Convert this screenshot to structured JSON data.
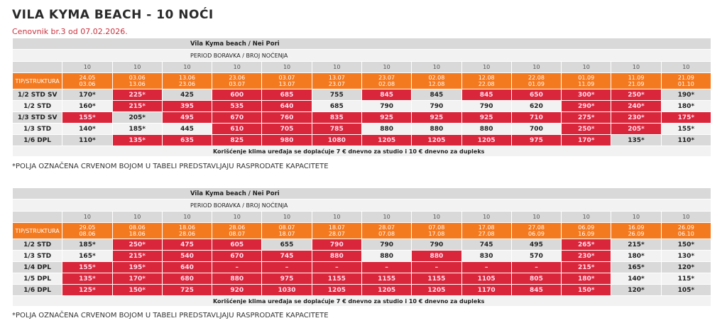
{
  "title": "VILA KYMA BEACH - 10 NOĆI",
  "subtitle": "Cenovnik br.3 od 07.02.2026.",
  "colors": {
    "sold": "#d9263a",
    "header": "#f47a20"
  },
  "tables": [
    {
      "heading": "Vila Kyma beach / Nei Pori",
      "period_label": "PERIOD BORAVKA / BROJ NOĆENJA",
      "type_label": "TIP/STRUKTURA",
      "nights": [
        "10",
        "10",
        "10",
        "10",
        "10",
        "10",
        "10",
        "10",
        "10",
        "10",
        "10",
        "10",
        "10"
      ],
      "periods": [
        [
          "24.05",
          "03.06"
        ],
        [
          "03.06",
          "13.06"
        ],
        [
          "13.06",
          "23.06"
        ],
        [
          "23.06",
          "03.07"
        ],
        [
          "03.07",
          "13.07"
        ],
        [
          "13.07",
          "23.07"
        ],
        [
          "23.07",
          "02.08"
        ],
        [
          "02.08",
          "12.08"
        ],
        [
          "12.08",
          "22.08"
        ],
        [
          "22.08",
          "01.09"
        ],
        [
          "01.09",
          "11.09"
        ],
        [
          "11.09",
          "21.09"
        ],
        [
          "21.09",
          "01.10"
        ]
      ],
      "rows": [
        {
          "type": "1/2 STD SV",
          "values": [
            "170*",
            "225*",
            "425",
            "600",
            "685",
            "755",
            "845",
            "845",
            "845",
            "650",
            "300*",
            "250*",
            "190*"
          ],
          "sold": [
            0,
            1,
            0,
            1,
            1,
            0,
            1,
            0,
            1,
            1,
            1,
            1,
            0
          ]
        },
        {
          "type": "1/2 STD",
          "values": [
            "160*",
            "215*",
            "395",
            "535",
            "640",
            "685",
            "790",
            "790",
            "790",
            "620",
            "290*",
            "240*",
            "180*"
          ],
          "sold": [
            0,
            1,
            1,
            1,
            1,
            0,
            0,
            0,
            0,
            0,
            1,
            1,
            0
          ]
        },
        {
          "type": "1/3 STD SV",
          "values": [
            "155*",
            "205*",
            "495",
            "670",
            "760",
            "835",
            "925",
            "925",
            "925",
            "710",
            "275*",
            "230*",
            "175*"
          ],
          "sold": [
            1,
            0,
            1,
            1,
            1,
            1,
            1,
            1,
            1,
            1,
            1,
            1,
            1
          ]
        },
        {
          "type": "1/3 STD",
          "values": [
            "140*",
            "185*",
            "445",
            "610",
            "705",
            "785",
            "880",
            "880",
            "880",
            "700",
            "250*",
            "205*",
            "155*"
          ],
          "sold": [
            0,
            0,
            0,
            1,
            1,
            1,
            0,
            0,
            0,
            0,
            1,
            1,
            0
          ]
        },
        {
          "type": "1/6 DPL",
          "values": [
            "110*",
            "135*",
            "635",
            "825",
            "980",
            "1080",
            "1205",
            "1205",
            "1205",
            "975",
            "170*",
            "135*",
            "110*"
          ],
          "sold": [
            0,
            1,
            1,
            1,
            1,
            1,
            1,
            1,
            1,
            1,
            1,
            0,
            0
          ]
        }
      ],
      "footer": "Korišćenje klima uređaja se doplaćuje 7 € dnevno za studio i 10 € dnevno za dupleks",
      "note": "*POLJA OZNAČENA CRVENOM BOJOM U TABELI PREDSTAVLJAJU RASPRODATE KAPACITETE"
    },
    {
      "heading": "Vila Kyma beach / Nei Pori",
      "period_label": "PERIOD BORAVKA / BROJ NOĆENJA",
      "type_label": "TIP/STRUKTURA",
      "nights": [
        "10",
        "10",
        "10",
        "10",
        "10",
        "10",
        "10",
        "10",
        "10",
        "10",
        "10",
        "10",
        "10"
      ],
      "periods": [
        [
          "29.05",
          "08.06"
        ],
        [
          "08.06",
          "18.06"
        ],
        [
          "18.06",
          "28.06"
        ],
        [
          "28.06",
          "08.07"
        ],
        [
          "08.07",
          "18.07"
        ],
        [
          "18.07",
          "28.07"
        ],
        [
          "28.07",
          "07.08"
        ],
        [
          "07.08",
          "17.08"
        ],
        [
          "17.08",
          "27.08"
        ],
        [
          "27.08",
          "06.09"
        ],
        [
          "06.09",
          "16.09"
        ],
        [
          "16.09",
          "26.09"
        ],
        [
          "26.09",
          "06.10"
        ]
      ],
      "rows": [
        {
          "type": "1/2 STD",
          "values": [
            "185*",
            "250*",
            "475",
            "605",
            "655",
            "790",
            "790",
            "790",
            "745",
            "495",
            "265*",
            "215*",
            "150*"
          ],
          "sold": [
            0,
            1,
            1,
            1,
            0,
            1,
            0,
            0,
            0,
            0,
            1,
            0,
            0
          ]
        },
        {
          "type": "1/3 STD",
          "values": [
            "165*",
            "215*",
            "540",
            "670",
            "745",
            "880",
            "880",
            "880",
            "830",
            "570",
            "230*",
            "180*",
            "130*"
          ],
          "sold": [
            0,
            1,
            1,
            1,
            1,
            1,
            0,
            1,
            0,
            0,
            1,
            0,
            0
          ]
        },
        {
          "type": "1/4 DPL",
          "values": [
            "155*",
            "195*",
            "640",
            "–",
            "–",
            "–",
            "–",
            "–",
            "–",
            "–",
            "215*",
            "165*",
            "120*"
          ],
          "sold": [
            1,
            1,
            1,
            1,
            1,
            1,
            1,
            1,
            1,
            1,
            1,
            0,
            0
          ]
        },
        {
          "type": "1/5 DPL",
          "values": [
            "135*",
            "170*",
            "680",
            "880",
            "975",
            "1155",
            "1155",
            "1155",
            "1105",
            "805",
            "180*",
            "140*",
            "115*"
          ],
          "sold": [
            1,
            1,
            1,
            1,
            1,
            1,
            1,
            1,
            1,
            1,
            1,
            0,
            0
          ]
        },
        {
          "type": "1/6 DPL",
          "values": [
            "125*",
            "150*",
            "725",
            "920",
            "1030",
            "1205",
            "1205",
            "1205",
            "1170",
            "845",
            "150*",
            "120*",
            "105*"
          ],
          "sold": [
            1,
            1,
            1,
            1,
            1,
            1,
            1,
            1,
            1,
            1,
            1,
            0,
            0
          ]
        }
      ],
      "footer": "Korišćenje klima uređaja se doplaćuje 7 € dnevno za studio i 10 € dnevno za dupleks",
      "note": "*POLJA OZNAČENA CRVENOM BOJOM U TABELI PREDSTAVLJAJU RASPRODATE KAPACITETE"
    }
  ]
}
